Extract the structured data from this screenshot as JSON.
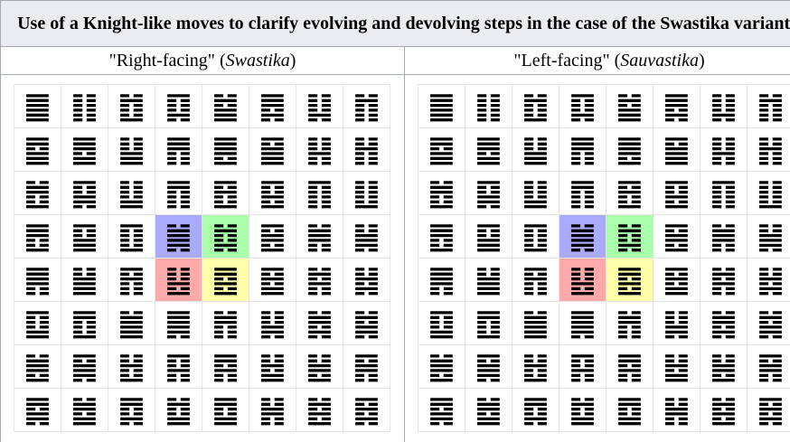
{
  "header": {
    "title": "Use of a Knight-like moves to clarify evolving and devolving steps in the case of the Swastika variants"
  },
  "tables": [
    {
      "caption": {
        "prefix": "\"Right-facing\" (",
        "italic": "Swastika",
        "suffix": ")"
      },
      "rows": [
        [
          "䷀",
          "䷁",
          "䷂",
          "䷃",
          "䷄",
          "䷅",
          "䷆",
          "䷇"
        ],
        [
          "䷈",
          "䷉",
          "䷊",
          "䷋",
          "䷌",
          "䷍",
          "䷎",
          "䷏"
        ],
        [
          "䷐",
          "䷑",
          "䷒",
          "䷓",
          "䷔",
          "䷕",
          "䷖",
          "䷗"
        ],
        [
          "䷘",
          "䷙",
          "䷚",
          "䷛",
          "䷜",
          "䷝",
          "䷞",
          "䷟"
        ],
        [
          "䷠",
          "䷡",
          "䷢",
          "䷣",
          "䷤",
          "䷥",
          "䷦",
          "䷧"
        ],
        [
          "䷨",
          "䷩",
          "䷪",
          "䷫",
          "䷬",
          "䷭",
          "䷮",
          "䷯"
        ],
        [
          "䷰",
          "䷱",
          "䷲",
          "䷳",
          "䷴",
          "䷵",
          "䷶",
          "䷷"
        ],
        [
          "䷸",
          "䷹",
          "䷺",
          "䷻",
          "䷼",
          "䷽",
          "䷾",
          "䷿"
        ]
      ],
      "highlights": [
        {
          "row": 3,
          "col": 3,
          "color": "#aaaaff"
        },
        {
          "row": 3,
          "col": 4,
          "color": "#aaffaa"
        },
        {
          "row": 4,
          "col": 3,
          "color": "#ffaaaa"
        },
        {
          "row": 4,
          "col": 4,
          "color": "#ffffaa"
        }
      ]
    },
    {
      "caption": {
        "prefix": "\"Left-facing\" (",
        "italic": "Sauvastika",
        "suffix": ")"
      },
      "rows": [
        [
          "䷀",
          "䷁",
          "䷂",
          "䷃",
          "䷄",
          "䷅",
          "䷆",
          "䷇"
        ],
        [
          "䷈",
          "䷉",
          "䷊",
          "䷋",
          "䷌",
          "䷍",
          "䷎",
          "䷏"
        ],
        [
          "䷐",
          "䷑",
          "䷒",
          "䷓",
          "䷔",
          "䷕",
          "䷖",
          "䷗"
        ],
        [
          "䷘",
          "䷙",
          "䷚",
          "䷛",
          "䷜",
          "䷝",
          "䷞",
          "䷟"
        ],
        [
          "䷠",
          "䷡",
          "䷢",
          "䷣",
          "䷤",
          "䷥",
          "䷦",
          "䷧"
        ],
        [
          "䷨",
          "䷩",
          "䷪",
          "䷫",
          "䷬",
          "䷭",
          "䷮",
          "䷯"
        ],
        [
          "䷰",
          "䷱",
          "䷲",
          "䷳",
          "䷴",
          "䷵",
          "䷶",
          "䷷"
        ],
        [
          "䷸",
          "䷹",
          "䷺",
          "䷻",
          "䷼",
          "䷽",
          "䷾",
          "䷿"
        ]
      ],
      "highlights": [
        {
          "row": 3,
          "col": 3,
          "color": "#aaaaff"
        },
        {
          "row": 3,
          "col": 4,
          "color": "#aaffaa"
        },
        {
          "row": 4,
          "col": 3,
          "color": "#ffaaaa"
        },
        {
          "row": 4,
          "col": 4,
          "color": "#ffffaa"
        }
      ]
    }
  ]
}
